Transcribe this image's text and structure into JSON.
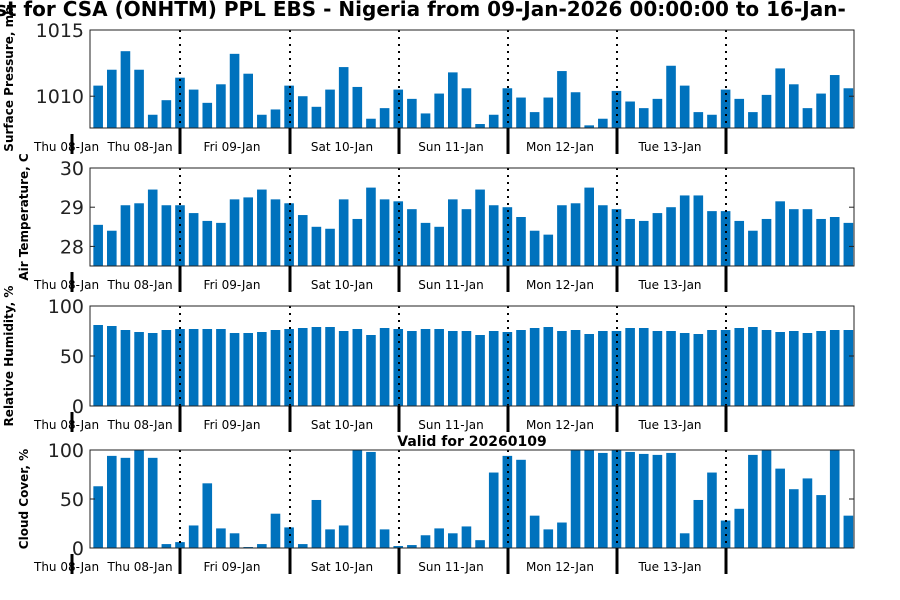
{
  "chart_data": [
    {
      "type": "bar",
      "title": "st for CSA (ONHTM) PPL EBS  - Nigeria from 09-Jan-2026 00:00:00 to 16-Jan-",
      "ylabel": "Surface Pressure, mb",
      "ylim": [
        1007.6,
        1015
      ],
      "yticks": [
        1010,
        1015
      ],
      "color": "#0072bd",
      "values": [
        1010.8,
        1012,
        1013.4,
        1012,
        1008.6,
        1009.7,
        1011.4,
        1010.5,
        1009.5,
        1010.9,
        1013.2,
        1011.7,
        1008.6,
        1009,
        1010.8,
        1010,
        1009.2,
        1010.5,
        1012.2,
        1010.7,
        1008.3,
        1009.1,
        1010.5,
        1009.8,
        1008.7,
        1010.2,
        1011.8,
        1010.6,
        1007.9,
        1008.6,
        1010.6,
        1009.9,
        1008.8,
        1009.9,
        1011.9,
        1010.3,
        1007.8,
        1008.3,
        1010.4,
        1009.6,
        1009.1,
        1009.8,
        1012.3,
        1010.8,
        1008.8,
        1008.6,
        1010.5,
        1009.8,
        1008.8,
        1010.1,
        1012.1,
        1010.9,
        1009.1,
        1010.2,
        1011.6,
        1010.6
      ]
    },
    {
      "type": "bar",
      "ylabel": "Air Temperature, C",
      "ylim": [
        27.5,
        30
      ],
      "yticks": [
        28,
        29,
        30
      ],
      "color": "#0072bd",
      "values": [
        28.55,
        28.4,
        29.05,
        29.1,
        29.45,
        29.05,
        29.05,
        28.85,
        28.65,
        28.6,
        29.2,
        29.25,
        29.45,
        29.2,
        29.1,
        28.8,
        28.5,
        28.45,
        29.2,
        28.7,
        29.5,
        29.2,
        29.15,
        28.95,
        28.6,
        28.5,
        29.2,
        28.95,
        29.45,
        29.05,
        29.0,
        28.75,
        28.4,
        28.3,
        29.05,
        29.1,
        29.5,
        29.05,
        28.95,
        28.7,
        28.65,
        28.85,
        29.0,
        29.3,
        29.3,
        28.9,
        28.9,
        28.65,
        28.4,
        28.7,
        29.15,
        28.95,
        28.95,
        28.7,
        28.75,
        28.6
      ]
    },
    {
      "type": "bar",
      "ylabel": "Relative Humidity, %",
      "ylim": [
        0,
        100
      ],
      "yticks": [
        0,
        50,
        100
      ],
      "color": "#0072bd",
      "values": [
        81,
        80,
        76,
        74,
        73,
        76,
        77,
        77,
        77,
        77,
        73,
        73,
        74,
        76,
        77,
        78,
        79,
        79,
        75,
        77,
        71,
        78,
        77,
        75,
        77,
        77,
        75,
        75,
        71,
        75,
        74,
        76,
        78,
        79,
        75,
        76,
        72,
        75,
        75,
        78,
        78,
        75,
        75,
        73,
        72,
        76,
        76,
        78,
        79,
        76,
        74,
        75,
        73,
        75,
        76,
        76
      ]
    },
    {
      "type": "bar",
      "title": "Valid for 20260109",
      "ylabel": "Cloud Cover, %",
      "ylim": [
        0,
        100
      ],
      "yticks": [
        0,
        50,
        100
      ],
      "color": "#0072bd",
      "values": [
        63,
        94,
        92,
        100,
        92,
        4,
        6,
        23,
        66,
        20,
        15,
        1,
        4,
        35,
        21,
        4,
        49,
        19,
        23,
        100,
        98,
        19,
        2,
        3,
        13,
        20,
        15,
        22,
        8,
        77,
        94,
        90,
        33,
        19,
        26,
        100,
        100,
        97,
        100,
        98,
        96,
        95,
        97,
        15,
        49,
        77,
        28,
        40,
        95,
        100,
        81,
        60,
        71,
        54,
        100,
        33
      ]
    }
  ],
  "x_axis": {
    "left_label": "Thu 08-Jan",
    "day_labels": [
      "Thu 08-Jan",
      "Fri 09-Jan",
      "Sat 10-Jan",
      "Sun 11-Jan",
      "Mon 12-Jan",
      "Tue 13-Jan"
    ]
  }
}
